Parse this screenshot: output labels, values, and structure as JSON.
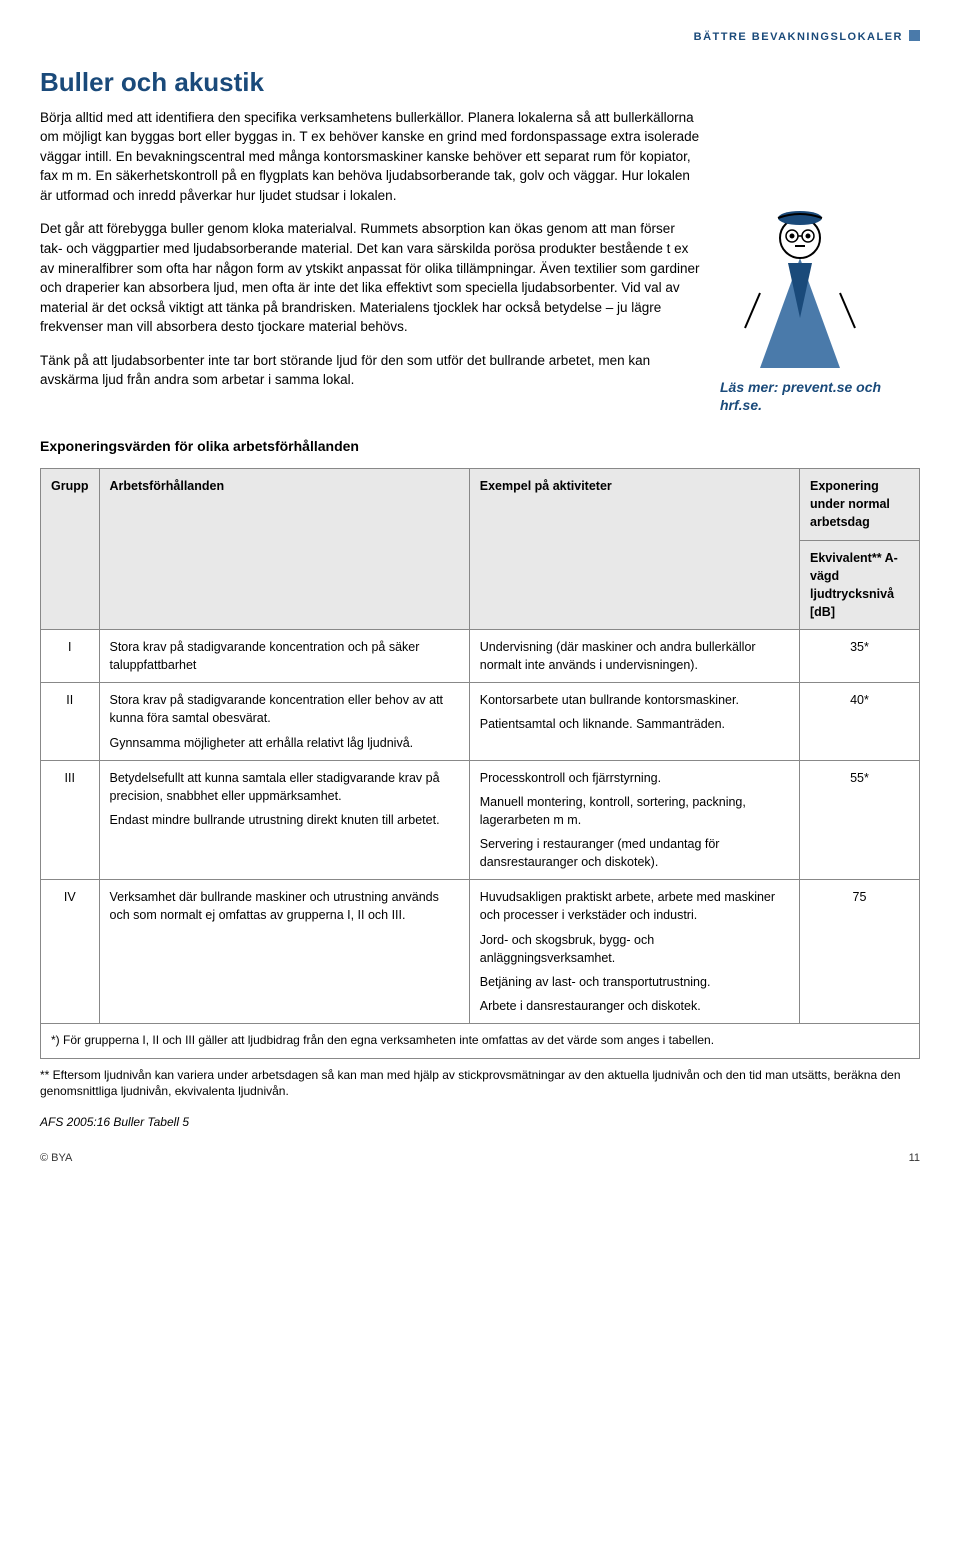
{
  "header": {
    "category": "BÄTTRE BEVAKNINGSLOKALER"
  },
  "article": {
    "title": "Buller och akustik",
    "p1": "Börja alltid med att identifiera den specifika verksamhetens bullerkällor. Planera lokalerna så att bullerkällorna om möjligt kan byggas bort eller byggas in. T ex behöver kanske en grind med fordonspassage extra isolerade väggar intill. En bevakningscentral med många kontorsmaskiner kanske behöver ett separat rum för kopiator, fax m m. En säkerhetskontroll på en flygplats kan behöva ljudabsorberande tak, golv och väggar. Hur lokalen är utformad och inredd påverkar hur ljudet studsar i lokalen.",
    "p2": "Det går att förebygga buller genom kloka materialval. Rummets absorption kan ökas genom att man förser tak- och väggpartier med ljudabsorberande material. Det kan vara särskilda porösa produkter bestående t ex av mineralfibrer som ofta har någon form av ytskikt anpassat för olika tillämpningar. Även textilier som gardiner och draperier kan absorbera ljud, men ofta är inte det lika effektivt som speciella ljudabsorbenter. Vid val av material är det också viktigt att tänka på brandrisken. Materialens tjocklek har också betydelse – ju lägre frekvenser man vill absorbera desto tjockare material behövs.",
    "p3": "Tänk på att ljudabsorbenter inte tar bort störande ljud för den som utför det bullrande arbetet, men kan avskärma ljud från andra som arbetar i samma lokal.",
    "read_more": "Läs mer: prevent.se och hrf.se."
  },
  "table": {
    "caption": "Exponeringsvärden för olika arbetsförhållanden",
    "columns": {
      "c1": "Grupp",
      "c2": "Arbetsförhållanden",
      "c3": "Exempel på aktiviteter",
      "c4": "Exponering under normal arbetsdag",
      "c4b": "Ekvivalent** A-vägd ljudtrycksnivå [dB]"
    },
    "rows": [
      {
        "grp": "I",
        "cond": [
          "Stora krav på stadigvarande koncentration och på säker taluppfattbarhet"
        ],
        "ex": [
          "Undervisning (där maskiner och andra bullerkällor normalt inte används i undervisningen)."
        ],
        "exp": "35*"
      },
      {
        "grp": "II",
        "cond": [
          "Stora krav på stadigvarande koncentration eller behov av att kunna föra samtal obesvärat.",
          "Gynnsamma möjligheter att erhålla relativt låg ljudnivå."
        ],
        "ex": [
          "Kontorsarbete utan bullrande kontorsmaskiner.",
          "Patientsamtal och liknande. Sammanträden."
        ],
        "exp": "40*"
      },
      {
        "grp": "III",
        "cond": [
          "Betydelsefullt att kunna samtala eller stadigvarande krav på precision, snabbhet eller uppmärksamhet.",
          "Endast mindre bullrande utrustning direkt knuten till arbetet."
        ],
        "ex": [
          "Processkontroll och fjärrstyrning.",
          "Manuell montering, kontroll, sortering, packning, lagerarbeten m m.",
          "Servering i restauranger (med undantag för dansrestauranger och diskotek)."
        ],
        "exp": "55*"
      },
      {
        "grp": "IV",
        "cond": [
          "Verksamhet där bullrande maskiner och utrustning används och som normalt ej omfattas av grupperna I, II och III."
        ],
        "ex": [
          "Huvudsakligen praktiskt arbete, arbete med maskiner och processer i verkstäder och industri.",
          "Jord- och skogsbruk, bygg- och anläggningsverksamhet.",
          "Betjäning av last- och transportutrustning.",
          "Arbete i dansrestauranger och diskotek."
        ],
        "exp": "75"
      }
    ],
    "footnote_star": "*) För grupperna I, II och III gäller att ljudbidrag från den egna verksamheten inte omfattas av det värde som anges i tabellen.",
    "footnote_dstar": "** Eftersom ljudnivån kan variera under arbetsdagen så kan man med hjälp av stickprovsmätningar av den aktuella ljudnivån och den tid man utsätts, beräkna den genomsnittliga ljudnivån, ekvivalenta ljudnivån.",
    "ref": "AFS 2005:16 Buller Tabell 5"
  },
  "footer": {
    "copyright": "© BYA",
    "page": "11"
  },
  "colors": {
    "heading": "#1a4a7a",
    "header_block": "#4a7aaa",
    "table_header_bg": "#e8e8e8",
    "border": "#888888"
  }
}
